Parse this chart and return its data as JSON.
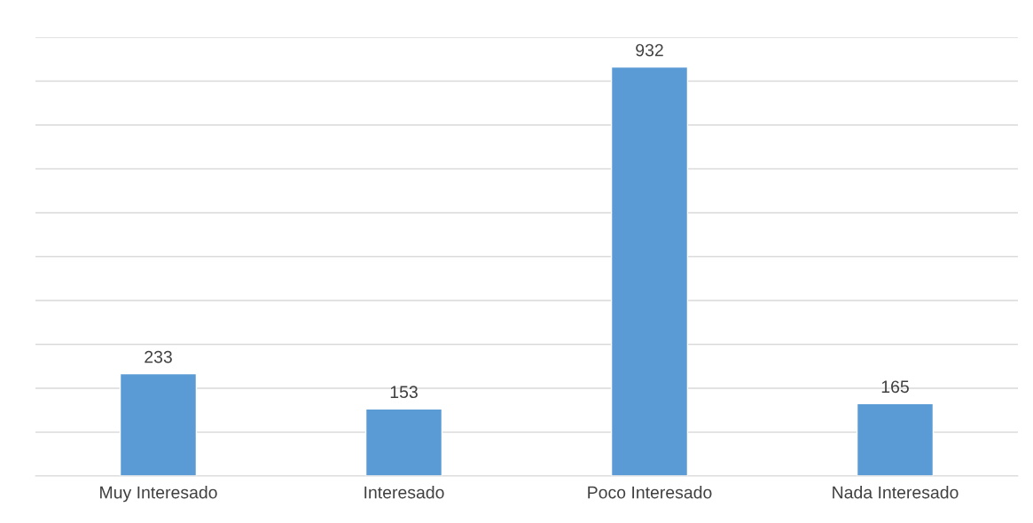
{
  "chart_data": {
    "type": "bar",
    "categories": [
      "Muy Interesado",
      "Interesado",
      "Poco Interesado",
      "Nada Interesado"
    ],
    "values": [
      233,
      153,
      932,
      165
    ],
    "color": "#5b9bd5",
    "ylim": [
      0,
      1000
    ],
    "yticks": [
      {
        "value": 0,
        "label": null
      },
      {
        "value": 100,
        "label": null
      },
      {
        "value": 200,
        "label": null
      },
      {
        "value": 300,
        "label": null
      },
      {
        "value": 400,
        "label": null
      },
      {
        "value": 500,
        "label": null
      },
      {
        "value": 600,
        "label": null
      },
      {
        "value": 700,
        "label": null
      },
      {
        "value": 800,
        "label": null
      },
      {
        "value": 900,
        "label": null
      },
      {
        "value": 1000,
        "label": null
      }
    ],
    "tick_labels": "x",
    "grid": "y",
    "data_labels": true
  }
}
